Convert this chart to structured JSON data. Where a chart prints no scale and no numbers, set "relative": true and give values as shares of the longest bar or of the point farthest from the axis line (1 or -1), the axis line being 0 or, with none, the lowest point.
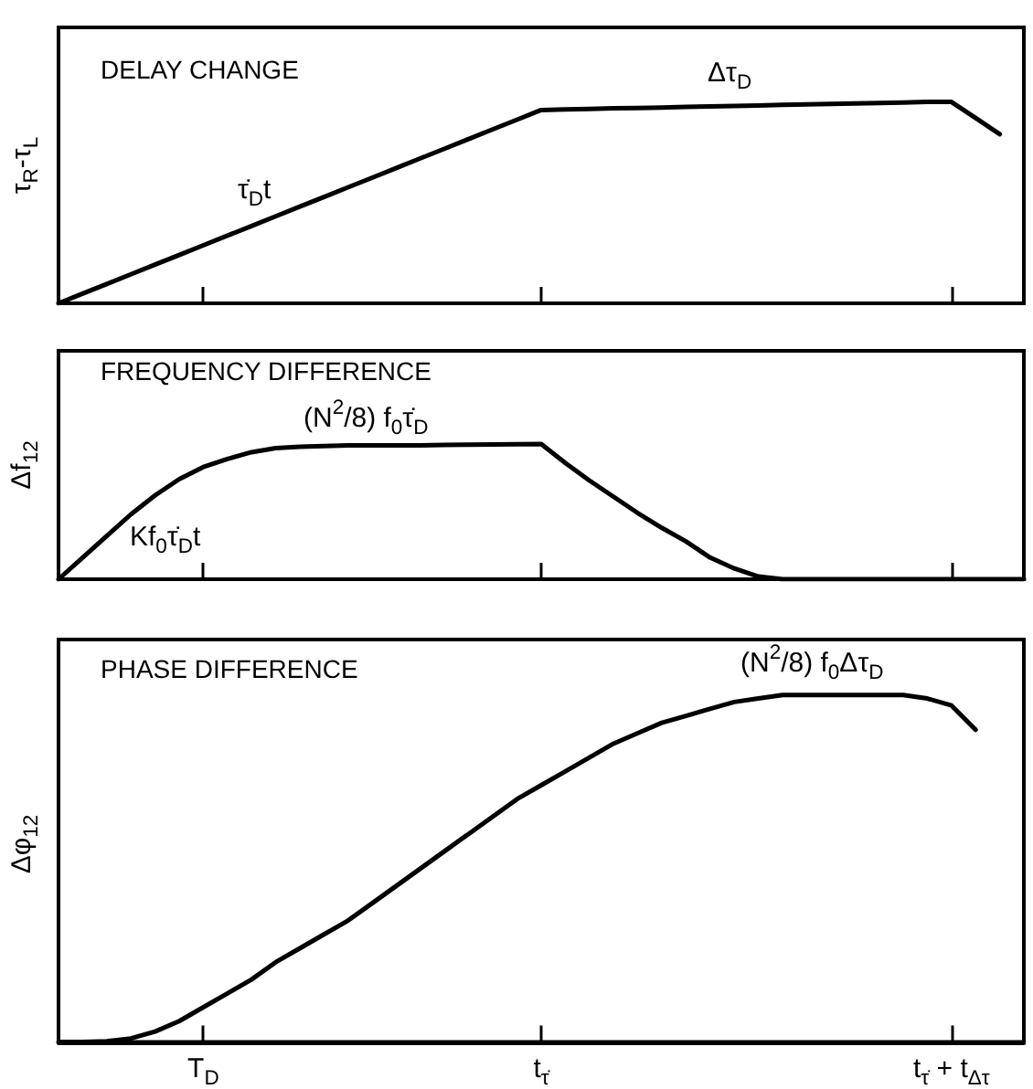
{
  "chart_data": [
    {
      "type": "line",
      "title": "DELAY CHANGE",
      "ylabel": "τ$_{R}$-τ$_{L}$",
      "relative": true,
      "tick_labels": false,
      "color": "#000000",
      "annotations": [
        "τ̇$_{D}$t",
        "Δτ$_{D}$"
      ],
      "categories": [
        null,
        null,
        null,
        null,
        null,
        null,
        null,
        null,
        null,
        null,
        null,
        null,
        null,
        null,
        null,
        null,
        null,
        null,
        null,
        null,
        null,
        null,
        null,
        null,
        null,
        null,
        null,
        null,
        null,
        null,
        null,
        null,
        null,
        null,
        null,
        null,
        null,
        null,
        null,
        null,
        null
      ],
      "values": [
        0,
        0.048,
        0.096,
        0.144,
        0.192,
        0.24,
        0.288,
        0.336,
        0.384,
        0.432,
        0.48,
        0.528,
        0.576,
        0.624,
        0.672,
        0.72,
        0.768,
        0.816,
        0.864,
        0.912,
        0.96,
        0.963,
        0.965,
        0.968,
        0.97,
        0.972,
        0.975,
        0.978,
        0.98,
        0.982,
        0.985,
        0.988,
        0.99,
        0.992,
        0.995,
        0.997,
        1.0,
        1.0,
        0.92,
        0.84,
        null
      ]
    },
    {
      "type": "line",
      "title": "FREQUENCY DIFFERENCE",
      "ylabel": "Δf$_{12}$",
      "relative": true,
      "tick_labels": false,
      "color": "#000000",
      "annotations": [
        "(N$^{2}$/8) f$_{0}$τ̇$_{D}$",
        "Kf$_{0}$τ̇$_{D}$t"
      ],
      "categories": [
        null,
        null,
        null,
        null,
        null,
        null,
        null,
        null,
        null,
        null,
        null,
        null,
        null,
        null,
        null,
        null,
        null,
        null,
        null,
        null,
        null,
        null,
        null,
        null,
        null,
        null,
        null,
        null,
        null,
        null,
        null,
        null,
        null,
        null,
        null,
        null,
        null,
        null,
        null,
        null,
        null
      ],
      "values": [
        0,
        0.16,
        0.32,
        0.48,
        0.62,
        0.74,
        0.83,
        0.89,
        0.94,
        0.97,
        0.98,
        0.985,
        0.99,
        0.99,
        0.99,
        0.99,
        0.993,
        0.995,
        0.997,
        0.998,
        1.0,
        0.86,
        0.73,
        0.61,
        0.49,
        0.38,
        0.28,
        0.16,
        0.08,
        0.02,
        0,
        0,
        0,
        0,
        0,
        0,
        0,
        0,
        0,
        0,
        0
      ]
    },
    {
      "type": "line",
      "title": "PHASE DIFFERENCE",
      "ylabel": "Δφ$_{12}$",
      "relative": true,
      "tick_labels": "x",
      "color": "#000000",
      "annotations": [
        "(N$^{2}$/8) f$_{0}$Δτ$_{D}$"
      ],
      "categories": [
        null,
        null,
        null,
        null,
        null,
        null,
        "T$_{D}$",
        null,
        null,
        null,
        null,
        null,
        null,
        null,
        null,
        null,
        null,
        null,
        null,
        null,
        "t$_{τ̇}$",
        null,
        null,
        null,
        null,
        null,
        null,
        null,
        null,
        null,
        null,
        null,
        null,
        null,
        null,
        null,
        null,
        "t$_{τ̇}$ + t$_{Δτ}$",
        null,
        null,
        null
      ],
      "values": [
        0,
        0,
        0.002,
        0.01,
        0.03,
        0.06,
        0.1,
        0.14,
        0.18,
        0.23,
        0.27,
        0.31,
        0.35,
        0.4,
        0.45,
        0.5,
        0.55,
        0.6,
        0.65,
        0.7,
        0.74,
        0.78,
        0.82,
        0.86,
        0.89,
        0.92,
        0.94,
        0.96,
        0.98,
        0.99,
        1.0,
        1.0,
        1.0,
        1.0,
        1.0,
        1.0,
        0.99,
        0.97,
        0.9,
        null,
        null
      ]
    }
  ]
}
